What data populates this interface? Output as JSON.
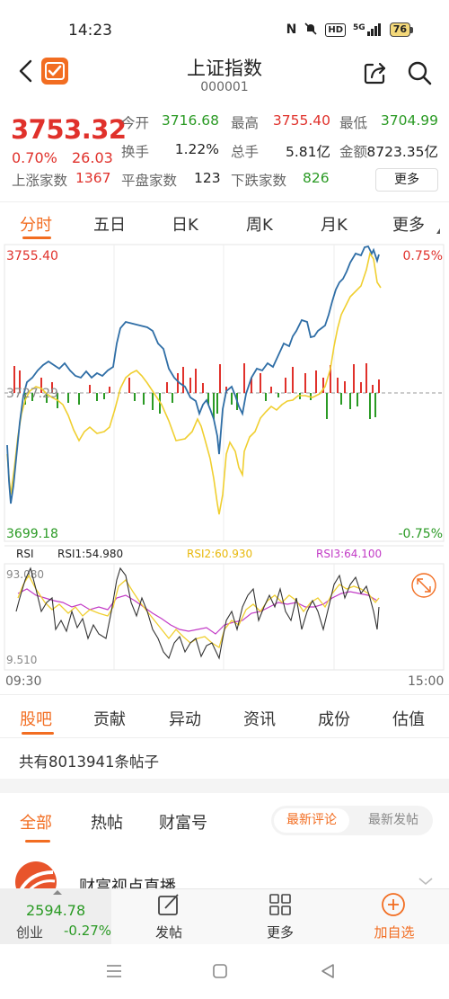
{
  "status_bar": {
    "time": "14:23",
    "net": "5G",
    "hd": "HD",
    "battery": "76"
  },
  "header": {
    "title": "上证指数",
    "code": "000001"
  },
  "quote": {
    "price": "3753.32",
    "change_pct": "0.70%",
    "change": "26.03",
    "open_label": "今开",
    "open": "3716.68",
    "high_label": "最高",
    "high": "3755.40",
    "low_label": "最低",
    "low": "3704.99",
    "turnover_label": "换手",
    "turnover": "1.22%",
    "volume_label": "总手",
    "volume": "5.81亿",
    "amount_label": "金额",
    "amount": "8723.35亿",
    "rise_label": "上涨家数",
    "rise": "1367",
    "flat_label": "平盘家数",
    "flat": "123",
    "fall_label": "下跌家数",
    "fall": "826",
    "more_label": "更多"
  },
  "period_tabs": [
    "分时",
    "五日",
    "日K",
    "周K",
    "月K",
    "更多"
  ],
  "chart": {
    "top_price": "3755.40",
    "top_pct": "0.75%",
    "bottom_price": "3699.18",
    "bottom_pct": "-0.75%",
    "mid_price": "3727.29",
    "rsi_label": "RSI",
    "rsi1": "RSI1:54.980",
    "rsi2": "RSI2:60.930",
    "rsi3": "RSI3:64.100",
    "rsi_top": "93.080",
    "rsi_bottom": "9.510",
    "time_start": "09:30",
    "time_end": "15:00",
    "colors": {
      "price_line": "#2f6ea6",
      "avg_line": "#f0cf30",
      "up": "#e0312b",
      "down": "#2a9a24",
      "rsi1": "#333333",
      "rsi2": "#f0cf30",
      "rsi3": "#c23bc6"
    }
  },
  "section_tabs": [
    "股吧",
    "贡献",
    "异动",
    "资讯",
    "成份",
    "估值"
  ],
  "post_count_text": "共有8013941条帖子",
  "filter_tabs": [
    "全部",
    "热帖",
    "财富号"
  ],
  "sort": {
    "newest_comment": "最新评论",
    "newest_post": "最新发帖"
  },
  "post": {
    "title": "财富视点直播"
  },
  "bottom_bar": {
    "index_value": "2594.78",
    "index_name": "创业",
    "index_change": "-0.27%",
    "post_label": "发帖",
    "more_label": "更多",
    "add_label": "加自选"
  }
}
